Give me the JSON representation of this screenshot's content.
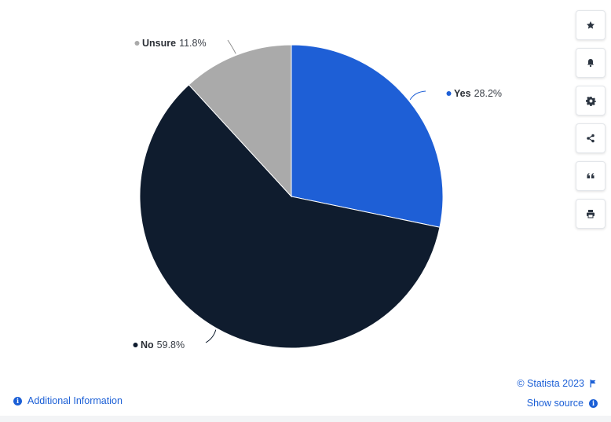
{
  "chart_data": {
    "type": "pie",
    "categories": [
      "Yes",
      "No",
      "Unsure"
    ],
    "values": [
      28.2,
      59.8,
      11.8
    ],
    "value_suffix": "%",
    "colors": [
      "#1e5fd6",
      "#0f1c2e",
      "#aaaaaa"
    ],
    "title": "",
    "legend": "none"
  },
  "toolbar": {
    "icons": [
      "star-icon",
      "bell-icon",
      "gear-icon",
      "share-icon",
      "quote-icon",
      "print-icon"
    ]
  },
  "footer": {
    "additional_info": "Additional Information",
    "copyright": "© Statista 2023",
    "show_source": "Show source"
  },
  "colors": {
    "accent": "#1b5fd6"
  }
}
